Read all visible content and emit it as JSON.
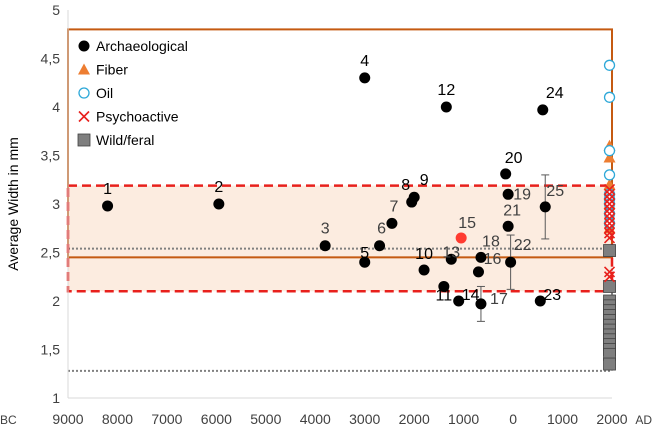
{
  "chart_data": {
    "type": "scatter",
    "ylabel": "Average Width in mm",
    "xlabel_left": "BC",
    "xlabel_right": "AD",
    "ylim": [
      1,
      5
    ],
    "xlim": [
      -9000,
      2000
    ],
    "x_tick_labels": [
      {
        "x": -9000,
        "label": "9000"
      },
      {
        "x": -8000,
        "label": "8000"
      },
      {
        "x": -7000,
        "label": "7000"
      },
      {
        "x": -6000,
        "label": "6000"
      },
      {
        "x": -5000,
        "label": "5000"
      },
      {
        "x": -4000,
        "label": "4000"
      },
      {
        "x": -3000,
        "label": "3000"
      },
      {
        "x": -2000,
        "label": "2000"
      },
      {
        "x": -1000,
        "label": "1000"
      },
      {
        "x": 0,
        "label": "0"
      },
      {
        "x": 1000,
        "label": "1000"
      },
      {
        "x": 2000,
        "label": "2000"
      }
    ],
    "y_tick_labels": [
      {
        "y": 1,
        "label": "1"
      },
      {
        "y": 1.5,
        "label": "1,5"
      },
      {
        "y": 2,
        "label": "2"
      },
      {
        "y": 2.5,
        "label": "2,5"
      },
      {
        "y": 3,
        "label": "3"
      },
      {
        "y": 3.5,
        "label": "3,5"
      },
      {
        "y": 4,
        "label": "4"
      },
      {
        "y": 4.5,
        "label": "4,5"
      },
      {
        "y": 5,
        "label": "5"
      }
    ],
    "grid": false,
    "legend_position": "top-left",
    "legend": [
      {
        "name": "Archaeological",
        "marker": "circle-filled",
        "color": "#000000"
      },
      {
        "name": "Fiber",
        "marker": "triangle",
        "color": "#ed7d31"
      },
      {
        "name": "Oil",
        "marker": "circle-open",
        "color": "#2ea8d8"
      },
      {
        "name": "Psychoactive",
        "marker": "cross",
        "color": "#e8201c"
      },
      {
        "name": "Wild/feral",
        "marker": "square",
        "color": "#7f7f7f"
      }
    ],
    "archaeological": [
      {
        "label": "1",
        "x": -8200,
        "y": 2.98
      },
      {
        "label": "2",
        "x": -5950,
        "y": 3.0
      },
      {
        "label": "3",
        "x": -3800,
        "y": 2.57
      },
      {
        "label": "4",
        "x": -3000,
        "y": 4.3
      },
      {
        "label": "5",
        "x": -3000,
        "y": 2.4
      },
      {
        "label": "6",
        "x": -2700,
        "y": 2.57
      },
      {
        "label": "7",
        "x": -2450,
        "y": 2.8
      },
      {
        "label": "8",
        "x": -2050,
        "y": 3.02
      },
      {
        "label": "9",
        "x": -2000,
        "y": 3.07
      },
      {
        "label": "10",
        "x": -1800,
        "y": 2.32
      },
      {
        "label": "11",
        "x": -1400,
        "y": 2.15
      },
      {
        "label": "12",
        "x": -1350,
        "y": 4.0
      },
      {
        "label": "13",
        "x": -1250,
        "y": 2.43
      },
      {
        "label": "14",
        "x": -1100,
        "y": 2.0
      },
      {
        "label": "15",
        "x": -1050,
        "y": 2.65,
        "highlight": true
      },
      {
        "label": "16",
        "x": -700,
        "y": 2.3
      },
      {
        "label": "17",
        "x": -650,
        "y": 1.97,
        "error": 0.18
      },
      {
        "label": "18",
        "x": -650,
        "y": 2.45
      },
      {
        "label": "19",
        "x": -100,
        "y": 3.1
      },
      {
        "label": "20",
        "x": -150,
        "y": 3.31
      },
      {
        "label": "21",
        "x": -100,
        "y": 2.77
      },
      {
        "label": "22",
        "x": -50,
        "y": 2.4,
        "error": 0.28
      },
      {
        "label": "23",
        "x": 550,
        "y": 2.0
      },
      {
        "label": "24",
        "x": 600,
        "y": 3.97
      },
      {
        "label": "25",
        "x": 650,
        "y": 2.97,
        "error": 0.33
      }
    ],
    "fiber": {
      "x": 1950,
      "values": [
        3.6,
        3.48,
        3.2,
        3.15,
        3.1,
        3.05,
        3.0,
        2.95,
        2.85,
        2.75
      ]
    },
    "oil": {
      "x": 1950,
      "values": [
        4.43,
        4.1,
        3.55,
        3.3,
        3.1,
        3.05,
        3.0,
        2.9,
        2.8
      ]
    },
    "psychoactive": {
      "x": 1950,
      "values": [
        3.15,
        3.1,
        3.05,
        3.0,
        2.95,
        2.9,
        2.85,
        2.8,
        2.75,
        2.7,
        2.65,
        2.3,
        2.25
      ]
    },
    "wild_feral": {
      "x": 1950,
      "values": [
        2.52,
        2.15,
        2.0,
        1.95,
        1.9,
        1.85,
        1.8,
        1.75,
        1.7,
        1.65,
        1.6,
        1.55,
        1.5,
        1.45,
        1.35
      ]
    },
    "ranges": {
      "solid_box": {
        "color": "#c55a11",
        "x": [
          -9000,
          2000
        ],
        "y": [
          2.45,
          4.8
        ]
      },
      "dashed_box": {
        "color": "#e8201c",
        "x": [
          -9000,
          2000
        ],
        "y": [
          2.1,
          3.19
        ],
        "fill": "#fbe5d6"
      },
      "dotted_lines": {
        "color": "#808080",
        "y": [
          2.54,
          1.28
        ],
        "x_right": 2000
      }
    }
  }
}
